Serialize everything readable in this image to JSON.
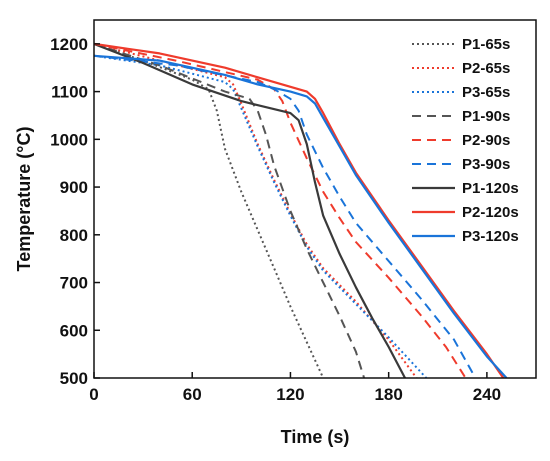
{
  "chart_data": {
    "type": "line",
    "xlabel": "Time (s)",
    "ylabel": "Temperature (°C)",
    "xlim": [
      0,
      270
    ],
    "ylim": [
      500,
      1250
    ],
    "xticks": [
      0,
      60,
      120,
      180,
      240
    ],
    "yticks": [
      500,
      600,
      700,
      800,
      900,
      1000,
      1100,
      1200
    ],
    "x_tick_labels": [
      "0",
      "60",
      "120",
      "180",
      "240"
    ],
    "y_tick_labels": [
      "500",
      "600",
      "700",
      "800",
      "900",
      "1000",
      "1100",
      "1200"
    ],
    "grid": false,
    "legend_position": "top-right",
    "series": [
      {
        "name": "P1-65s",
        "color": "#555555",
        "dash": "dot",
        "x": [
          0,
          30,
          60,
          70,
          75,
          80,
          90,
          100,
          110,
          120,
          130,
          140
        ],
        "y": [
          1200,
          1165,
          1125,
          1105,
          1060,
          980,
          890,
          810,
          730,
          650,
          575,
          500
        ]
      },
      {
        "name": "P2-65s",
        "color": "#ef3b2c",
        "dash": "dot",
        "x": [
          0,
          40,
          80,
          85,
          90,
          100,
          110,
          120,
          130,
          140,
          160,
          180,
          197
        ],
        "y": [
          1200,
          1165,
          1130,
          1115,
          1075,
          990,
          915,
          845,
          780,
          730,
          660,
          580,
          500
        ]
      },
      {
        "name": "P3-65s",
        "color": "#1a74d9",
        "dash": "dot",
        "x": [
          0,
          40,
          80,
          85,
          90,
          100,
          110,
          120,
          130,
          140,
          160,
          180,
          203
        ],
        "y": [
          1175,
          1155,
          1120,
          1105,
          1065,
          985,
          910,
          840,
          775,
          725,
          655,
          585,
          500
        ]
      },
      {
        "name": "P1-90s",
        "color": "#555555",
        "dash": "dash",
        "x": [
          0,
          40,
          80,
          95,
          100,
          105,
          110,
          120,
          130,
          140,
          150,
          160,
          165
        ],
        "y": [
          1200,
          1155,
          1100,
          1085,
          1060,
          1010,
          945,
          850,
          770,
          700,
          630,
          555,
          500
        ]
      },
      {
        "name": "P2-90s",
        "color": "#ef3b2c",
        "dash": "dash",
        "x": [
          0,
          50,
          100,
          110,
          115,
          120,
          130,
          140,
          150,
          160,
          180,
          200,
          215,
          227
        ],
        "y": [
          1200,
          1165,
          1125,
          1105,
          1080,
          1035,
          960,
          890,
          835,
          785,
          710,
          630,
          565,
          500
        ]
      },
      {
        "name": "P3-90s",
        "color": "#1a74d9",
        "dash": "dash",
        "x": [
          0,
          50,
          100,
          110,
          120,
          125,
          130,
          140,
          150,
          160,
          180,
          200,
          220,
          233
        ],
        "y": [
          1175,
          1155,
          1120,
          1105,
          1085,
          1060,
          1010,
          940,
          880,
          825,
          745,
          665,
          580,
          500
        ]
      },
      {
        "name": "P1-120s",
        "color": "#3a3a3a",
        "dash": "solid",
        "x": [
          0,
          30,
          60,
          90,
          120,
          125,
          130,
          135,
          140,
          150,
          160,
          170,
          180,
          190
        ],
        "y": [
          1200,
          1160,
          1115,
          1080,
          1055,
          1040,
          990,
          910,
          840,
          760,
          690,
          625,
          565,
          500
        ]
      },
      {
        "name": "P2-120s",
        "color": "#ef3b2c",
        "dash": "solid",
        "x": [
          0,
          40,
          80,
          100,
          120,
          130,
          135,
          140,
          150,
          160,
          170,
          180,
          200,
          220,
          240,
          250
        ],
        "y": [
          1200,
          1180,
          1150,
          1130,
          1110,
          1100,
          1085,
          1055,
          990,
          930,
          880,
          830,
          735,
          640,
          550,
          500
        ]
      },
      {
        "name": "P3-120s",
        "color": "#1a74d9",
        "dash": "solid",
        "x": [
          0,
          40,
          80,
          100,
          120,
          130,
          135,
          140,
          150,
          160,
          170,
          180,
          200,
          220,
          240,
          252
        ],
        "y": [
          1175,
          1165,
          1135,
          1115,
          1100,
          1090,
          1075,
          1045,
          985,
          925,
          875,
          825,
          730,
          635,
          545,
          500
        ]
      }
    ]
  }
}
